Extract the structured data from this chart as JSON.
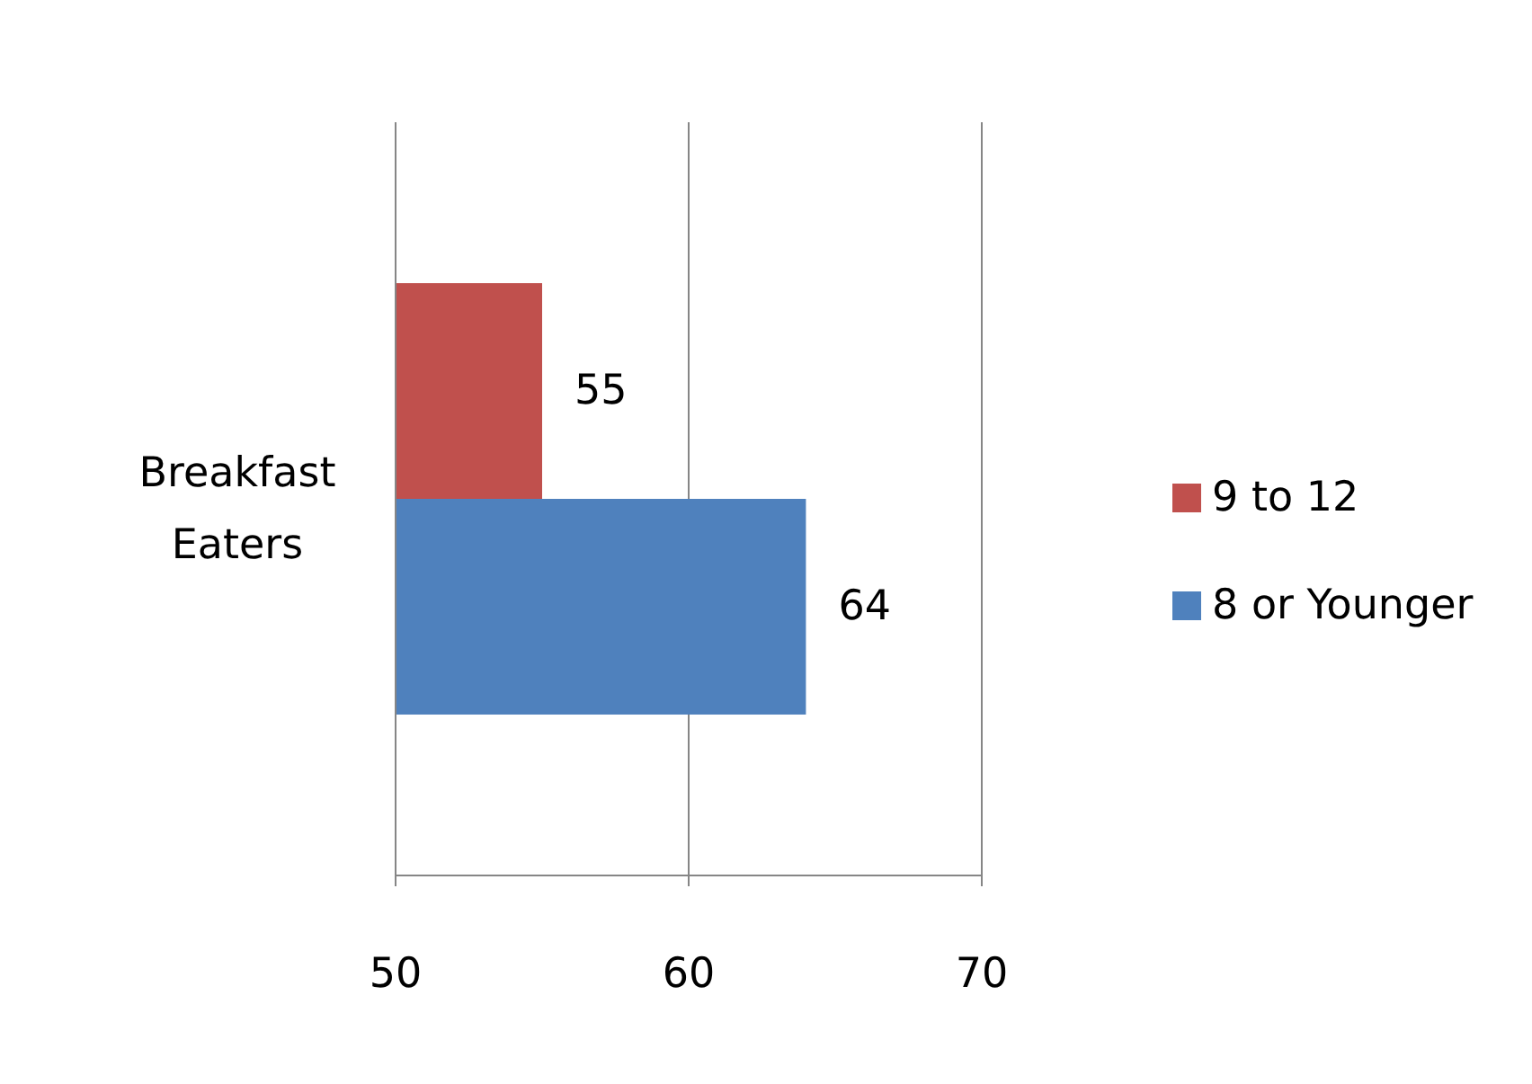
{
  "chart_data": {
    "type": "bar",
    "orientation": "horizontal",
    "categories": [
      "Breakfast Eaters"
    ],
    "series": [
      {
        "name": "8 or Younger",
        "color": "#4f81bd",
        "values": [
          64
        ]
      },
      {
        "name": "9 to 12",
        "color": "#c0504d",
        "values": [
          55
        ]
      }
    ],
    "xlim": [
      50,
      70
    ],
    "xticks": [
      50,
      60,
      70
    ],
    "grid": "x",
    "legend": "right",
    "data_labels": true
  }
}
